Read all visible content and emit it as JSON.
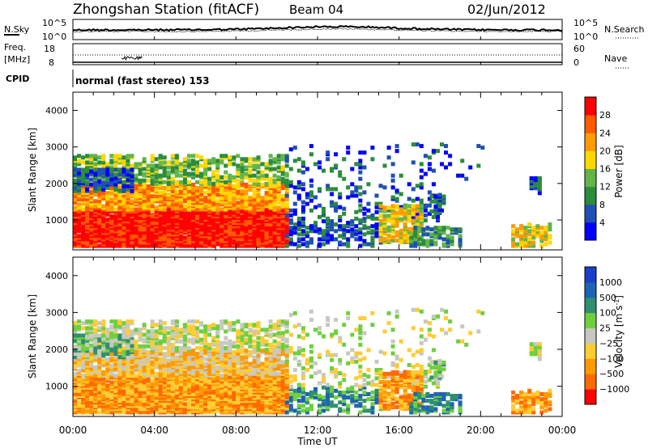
{
  "header": {
    "station": "Zhongshan Station (fitACF)",
    "beam": "Beam 04",
    "date": "02/Jun/2012"
  },
  "noise_panel": {
    "left_label": "N.Sky",
    "right_label": "N.Search",
    "left_ticks": [
      "10^5",
      "10^0"
    ],
    "right_ticks": [
      "10^5",
      "10^0"
    ]
  },
  "freq_panel": {
    "left_label_1": "Freq.",
    "left_label_2": "[MHz]",
    "right_label": "Nave",
    "left_ticks": [
      "18",
      "8"
    ],
    "right_ticks": [
      "60",
      "0"
    ]
  },
  "cpid": {
    "label": "CPID",
    "text": "normal (fast stereo) 153"
  },
  "colors": {
    "power": [
      "#0000ff",
      "#1f50b4",
      "#2b8c3c",
      "#63b54a",
      "#ffd700",
      "#ff9c00",
      "#ff5a00",
      "#ff0000"
    ],
    "velocity": [
      "#ff0000",
      "#ff6a00",
      "#ff9900",
      "#ffcc33",
      "#c8c8c0",
      "#6fcf3f",
      "#2f8f6f",
      "#1f63b4",
      "#1a3fc8"
    ]
  },
  "chart_data": [
    {
      "type": "heatmap",
      "name": "Power",
      "xlabel": "",
      "ylabel": "Slant Range [km]",
      "x_ticks": [],
      "xlim": [
        0,
        24
      ],
      "ylim": [
        180,
        4500
      ],
      "y_ticks": [
        "1000",
        "2000",
        "3000",
        "4000"
      ],
      "colorbar": {
        "label": "Power [dB]",
        "tick_labels": [
          "4",
          "8",
          "12",
          "16",
          "20",
          "24",
          "28"
        ],
        "range": [
          0,
          32
        ]
      }
    },
    {
      "type": "heatmap",
      "name": "Velocity",
      "xlabel": "Time UT",
      "ylabel": "Slant Range [km]",
      "x_ticks": [
        "00:00",
        "04:00",
        "08:00",
        "12:00",
        "16:00",
        "20:00",
        "00:00"
      ],
      "xlim": [
        0,
        24
      ],
      "ylim": [
        180,
        4500
      ],
      "y_ticks": [
        "1000",
        "2000",
        "3000",
        "4000"
      ],
      "colorbar": {
        "label": "Velocity [m s",
        "label_exp": "-1",
        "tick_labels": [
          "1000",
          "500",
          "100",
          "25",
          "−25",
          "−100",
          "−500",
          "−1000"
        ]
      }
    }
  ]
}
